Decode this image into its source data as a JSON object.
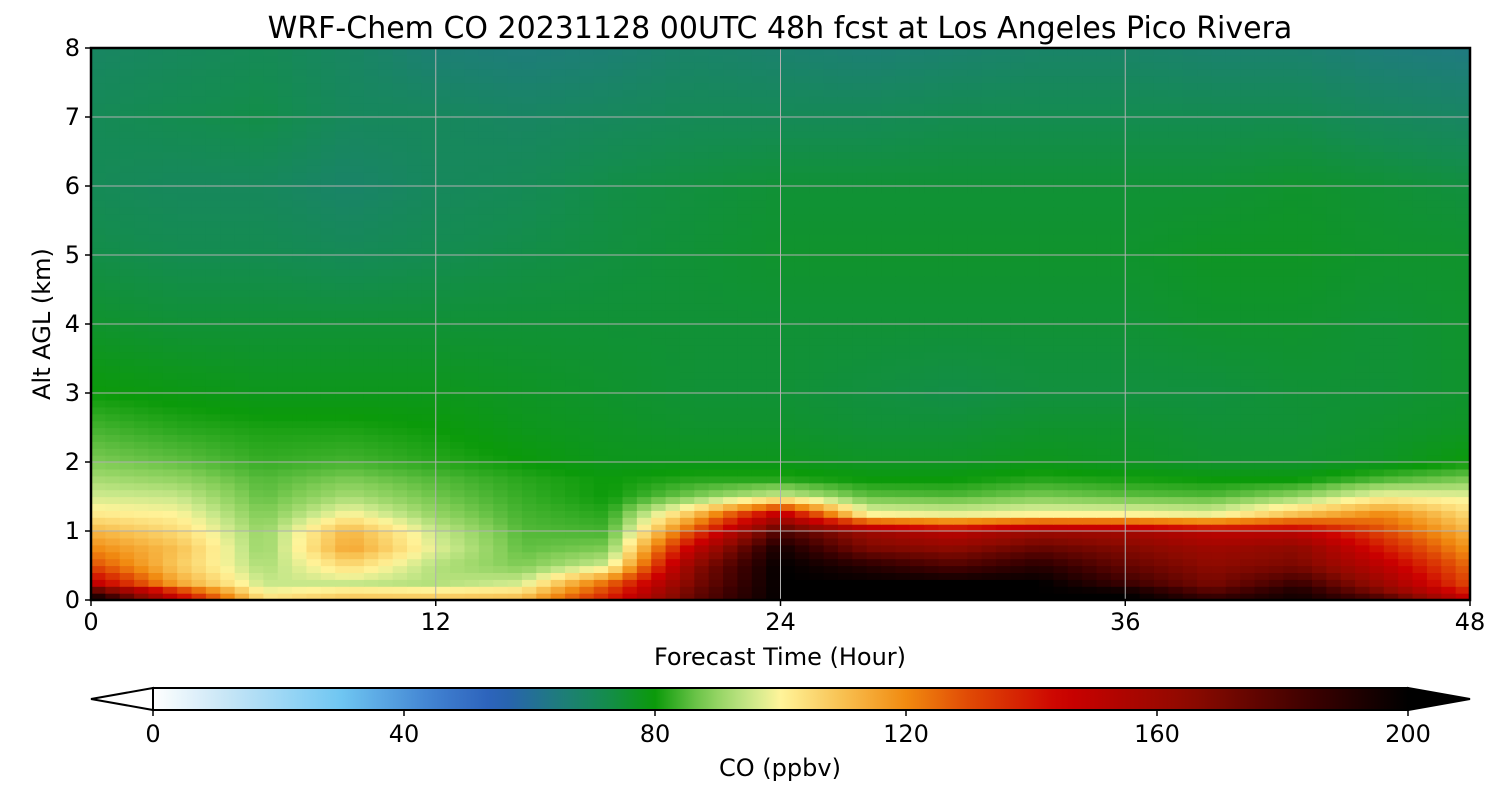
{
  "chart_data": {
    "type": "heatmap",
    "title": "WRF-Chem CO  20231128 00UTC 48h fcst at Los Angeles Pico Rivera",
    "xlabel": "Forecast Time (Hour)",
    "ylabel": "Alt AGL (km)",
    "xlim": [
      0,
      48
    ],
    "ylim": [
      0,
      8
    ],
    "x_ticks": [
      0,
      12,
      24,
      36,
      48
    ],
    "y_ticks": [
      0,
      1,
      2,
      3,
      4,
      5,
      6,
      7,
      8
    ],
    "grid": true,
    "colorbar": {
      "label": "CO  (ppbv)",
      "min": 0,
      "max": 200,
      "ticks": [
        0,
        40,
        80,
        120,
        160,
        200
      ],
      "extend": "both",
      "orientation": "horizontal",
      "placement": "bottom"
    },
    "x": [
      0,
      3,
      6,
      9,
      12,
      15,
      18,
      21,
      24,
      27,
      30,
      33,
      36,
      39,
      42,
      45,
      48
    ],
    "y": [
      0,
      0.1,
      0.25,
      0.5,
      0.75,
      1,
      1.25,
      1.5,
      1.75,
      2,
      2.5,
      3,
      4,
      5,
      6,
      7,
      8
    ],
    "z": [
      [
        200,
        150,
        105,
        110,
        110,
        112,
        140,
        175,
        200,
        200,
        200,
        200,
        200,
        190,
        195,
        185,
        150
      ],
      [
        190,
        140,
        100,
        105,
        104,
        106,
        135,
        175,
        200,
        200,
        200,
        200,
        200,
        180,
        195,
        170,
        140
      ],
      [
        150,
        115,
        95,
        95,
        93,
        96,
        125,
        170,
        200,
        200,
        200,
        200,
        185,
        170,
        185,
        160,
        130
      ],
      [
        130,
        108,
        92,
        105,
        93,
        88,
        96,
        165,
        200,
        190,
        180,
        190,
        175,
        165,
        170,
        150,
        125
      ],
      [
        120,
        110,
        90,
        115,
        97,
        86,
        88,
        150,
        195,
        170,
        165,
        175,
        168,
        160,
        165,
        140,
        118
      ],
      [
        112,
        105,
        90,
        112,
        95,
        85,
        84,
        130,
        180,
        160,
        150,
        160,
        158,
        150,
        150,
        130,
        112
      ],
      [
        102,
        100,
        88,
        100,
        90,
        84,
        82,
        110,
        150,
        100,
        98,
        100,
        100,
        98,
        110,
        120,
        105
      ],
      [
        96,
        95,
        86,
        92,
        87,
        83,
        80,
        88,
        96,
        86,
        85,
        88,
        86,
        85,
        90,
        100,
        98
      ],
      [
        92,
        90,
        85,
        88,
        85,
        82,
        80,
        82,
        82,
        80,
        80,
        82,
        81,
        80,
        80,
        85,
        88
      ],
      [
        88,
        86,
        83,
        84,
        82,
        80,
        78,
        78,
        78,
        77,
        77,
        78,
        77,
        76,
        76,
        77,
        80
      ],
      [
        84,
        82,
        81,
        81,
        80,
        78,
        77,
        76,
        76,
        75,
        75,
        76,
        76,
        75,
        75,
        76,
        77
      ],
      [
        80,
        79,
        78,
        78,
        78,
        77,
        76,
        75,
        75,
        74,
        73,
        74,
        74,
        74,
        75,
        75,
        76
      ],
      [
        76,
        75,
        75,
        75,
        75,
        75,
        75,
        75,
        75,
        75,
        75,
        75,
        75,
        76,
        76,
        75,
        76
      ],
      [
        73,
        72,
        72,
        71,
        72,
        73,
        74,
        75,
        76,
        76,
        76,
        76,
        76,
        77,
        77,
        76,
        76
      ],
      [
        71,
        70,
        70,
        68,
        70,
        71,
        73,
        74,
        75,
        75,
        75,
        75,
        75,
        75,
        76,
        75,
        74
      ],
      [
        71,
        72,
        73,
        70,
        70,
        69,
        70,
        71,
        71,
        71,
        72,
        72,
        72,
        72,
        72,
        70,
        69
      ],
      [
        69,
        70,
        71,
        69,
        66,
        65,
        66,
        68,
        67,
        66,
        67,
        68,
        68,
        67,
        67,
        65,
        64
      ]
    ],
    "colors": {
      "palette": [
        "#ffffff",
        "#cfe9f7",
        "#6fc6f2",
        "#3f7fd0",
        "#2a5fb8",
        "#1e7d7a",
        "#148c50",
        "#0b9a0a",
        "#7fcc55",
        "#c8e88a",
        "#fff49a",
        "#f8c050",
        "#f18a10",
        "#e04a05",
        "#cc0000",
        "#8e0a00",
        "#3a0000",
        "#000000"
      ],
      "palette_stops": [
        0,
        10,
        30,
        45,
        55,
        65,
        72,
        80,
        88,
        95,
        100,
        110,
        120,
        130,
        145,
        165,
        185,
        200
      ],
      "grid": "#b0b0b0",
      "frame": "#000000"
    }
  }
}
